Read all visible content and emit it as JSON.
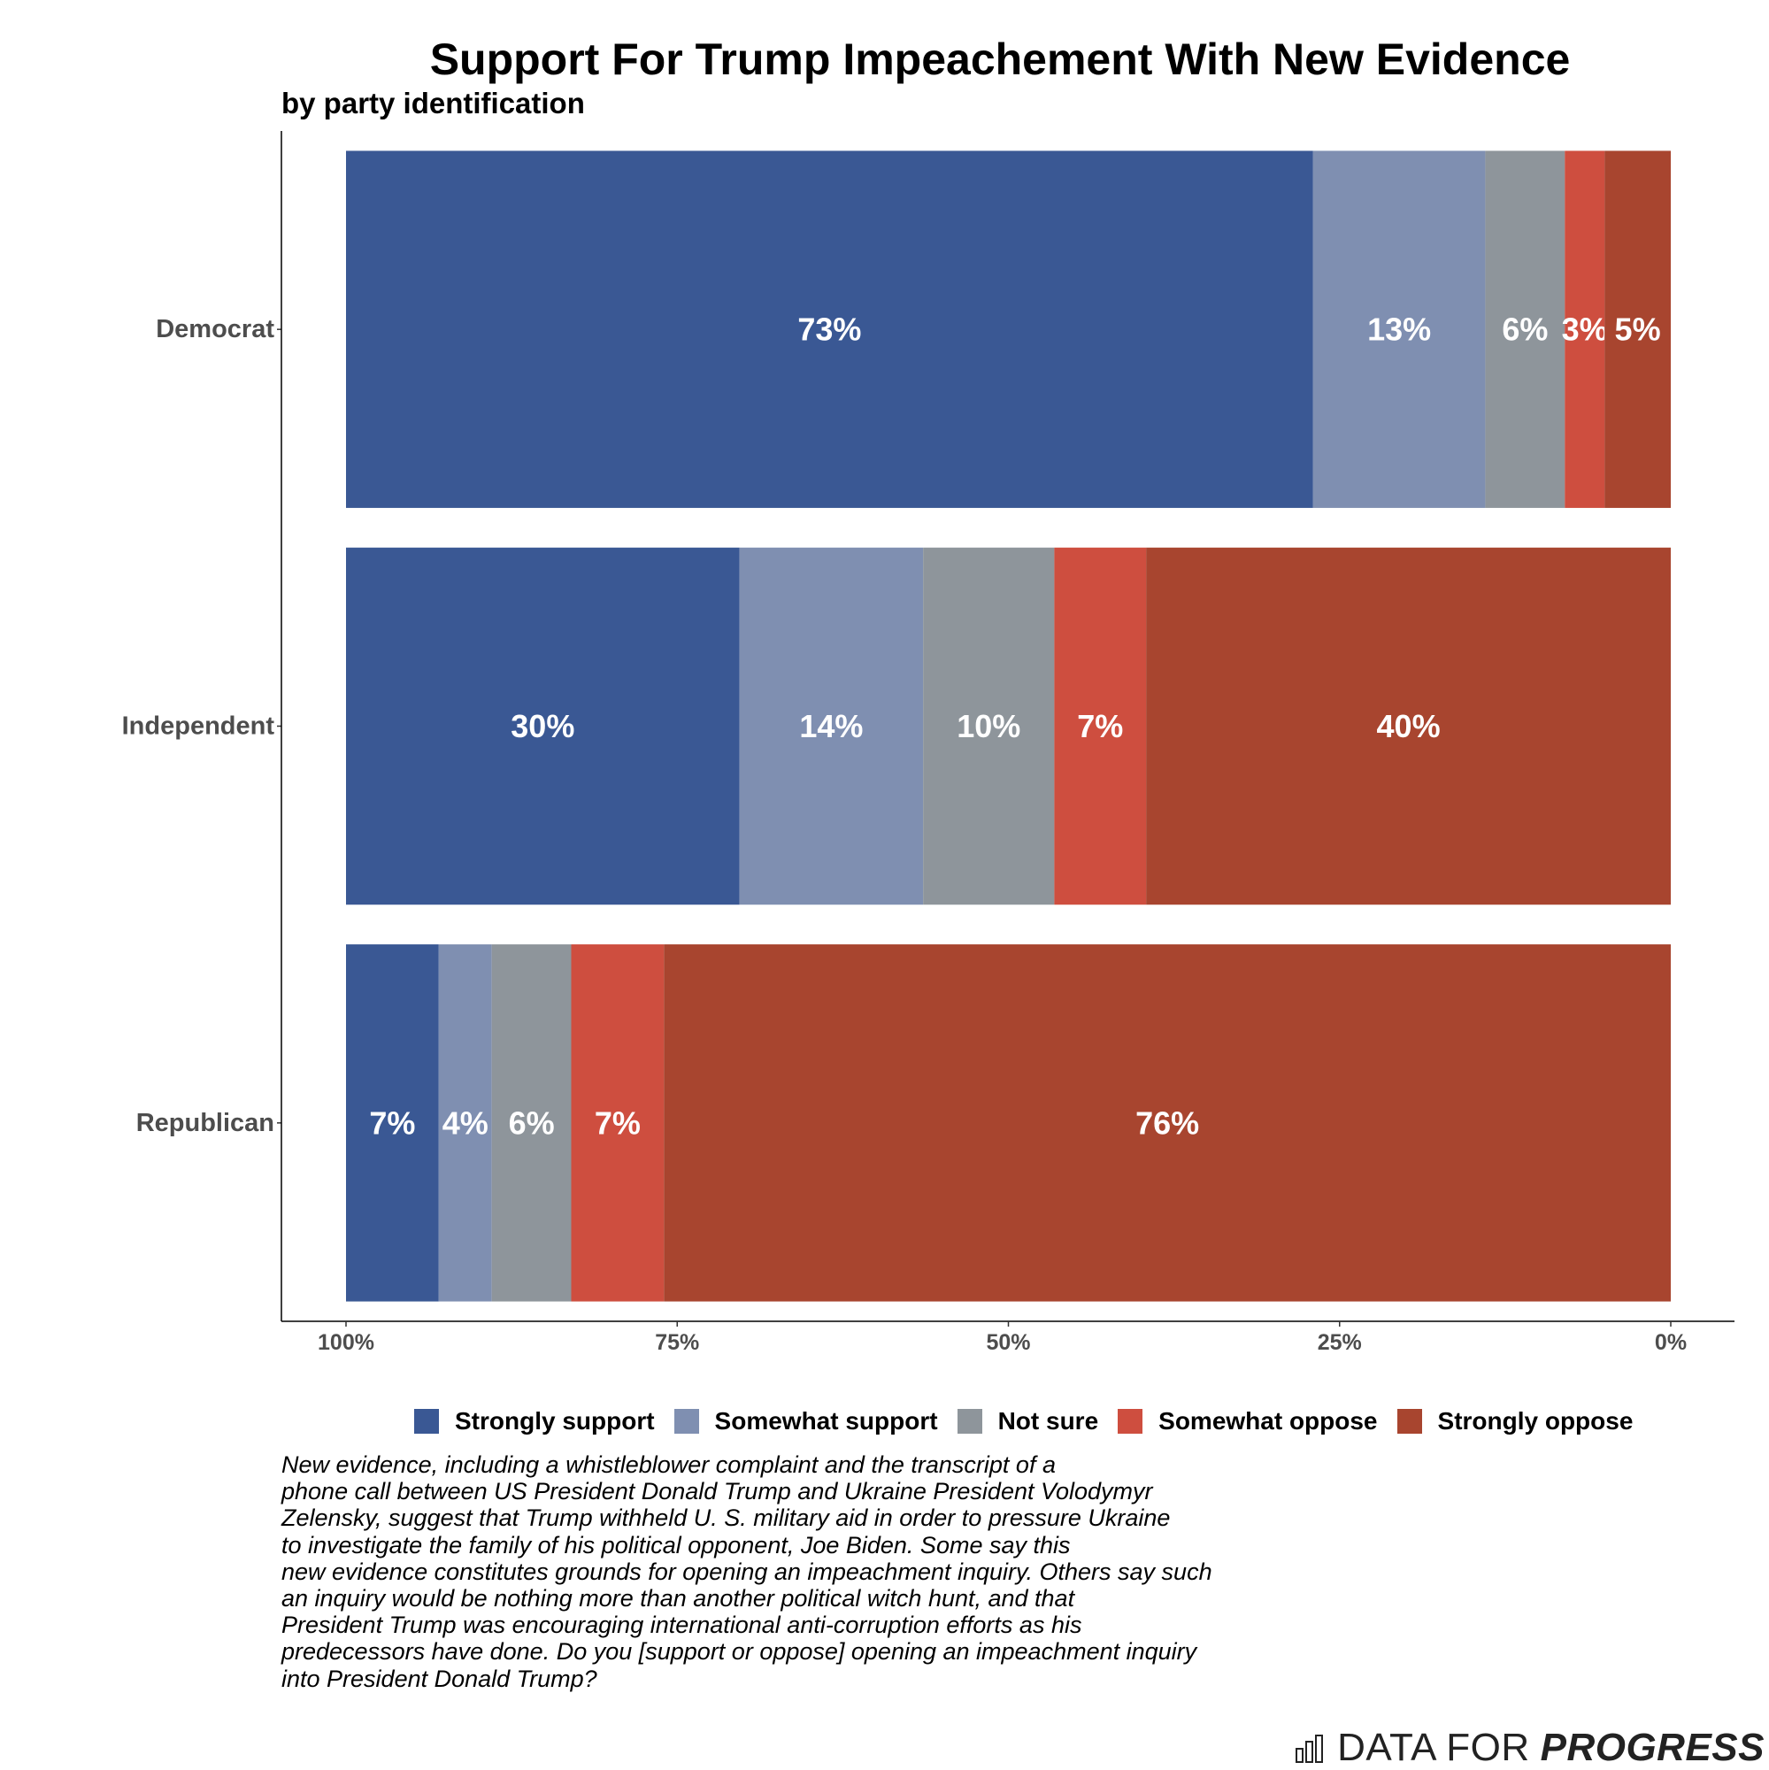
{
  "chart_data": {
    "type": "bar",
    "orientation": "horizontal",
    "stacked": true,
    "title": "Support For Trump Impeachement With New Evidence",
    "subtitle": "by party identification",
    "categories": [
      "Democrat",
      "Independent",
      "Republican"
    ],
    "series": [
      {
        "name": "Strongly support",
        "color": "#3a5894",
        "values": [
          73,
          30,
          7
        ]
      },
      {
        "name": "Somewhat support",
        "color": "#7f8fb1",
        "values": [
          13,
          14,
          4
        ]
      },
      {
        "name": "Not sure",
        "color": "#8e959b",
        "values": [
          6,
          10,
          6
        ]
      },
      {
        "name": "Somewhat oppose",
        "color": "#ce4e3f",
        "values": [
          3,
          7,
          7
        ]
      },
      {
        "name": "Strongly oppose",
        "color": "#a8452f",
        "values": [
          5,
          40,
          76
        ]
      }
    ],
    "data_labels": [
      [
        "73%",
        "13%",
        "6%",
        "3%",
        "5%"
      ],
      [
        "30%",
        "14%",
        "10%",
        "7%",
        "40%"
      ],
      [
        "7%",
        "4%",
        "6%",
        "7%",
        "76%"
      ]
    ],
    "x_ticks": [
      "100%",
      "75%",
      "50%",
      "25%",
      "0%"
    ],
    "x_tick_values": [
      100,
      75,
      50,
      25,
      0
    ],
    "xlim": [
      100,
      0
    ],
    "grid": false,
    "legend_position": "bottom"
  },
  "caption": "New evidence, including a whistleblower complaint and the transcript of a\nphone call between US President Donald Trump and Ukraine President Volodymyr\nZelensky, suggest that Trump withheld U. S. military aid in order to pressure Ukraine\nto investigate the family of his political opponent, Joe Biden. Some say this\nnew evidence constitutes grounds for opening an impeachment inquiry. Others say such\nan inquiry would be nothing more than another political witch hunt, and that\nPresident Trump was encouraging international anti-corruption efforts as his\npredecessors have done. Do you [support or oppose] opening an impeachment inquiry\ninto President Donald Trump?",
  "brand": {
    "light": "DATA FOR",
    "strong": "PROGRESS"
  }
}
